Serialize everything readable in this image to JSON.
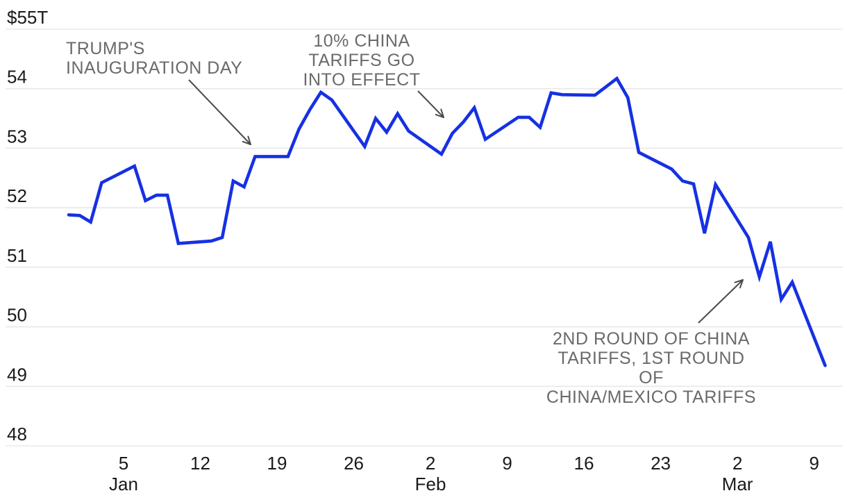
{
  "chart_data": {
    "type": "line",
    "title": "",
    "unit": "trillions of US dollars",
    "ylim": [
      48,
      55
    ],
    "grid": true,
    "y_ticks": [
      {
        "value": 55,
        "label": "$55T"
      },
      {
        "value": 54,
        "label": "54"
      },
      {
        "value": 53,
        "label": "53"
      },
      {
        "value": 52,
        "label": "52"
      },
      {
        "value": 51,
        "label": "51"
      },
      {
        "value": 50,
        "label": "50"
      },
      {
        "value": 49,
        "label": "49"
      },
      {
        "value": 48,
        "label": "48"
      }
    ],
    "x_ticks": [
      {
        "date": "2025-01-05",
        "label": "5",
        "month": "Jan"
      },
      {
        "date": "2025-01-12",
        "label": "12"
      },
      {
        "date": "2025-01-19",
        "label": "19"
      },
      {
        "date": "2025-01-26",
        "label": "26"
      },
      {
        "date": "2025-02-02",
        "label": "2",
        "month": "Feb"
      },
      {
        "date": "2025-02-09",
        "label": "9"
      },
      {
        "date": "2025-02-16",
        "label": "16"
      },
      {
        "date": "2025-02-23",
        "label": "23"
      },
      {
        "date": "2025-03-02",
        "label": "2",
        "month": "Mar"
      },
      {
        "date": "2025-03-09",
        "label": "9"
      }
    ],
    "series": [
      {
        "name": "total-us-stock-market-value",
        "color": "#1631e2",
        "points": [
          [
            "2024-12-31",
            51.88
          ],
          [
            "2025-01-01",
            51.87
          ],
          [
            "2025-01-02",
            51.76
          ],
          [
            "2025-01-03",
            52.42
          ],
          [
            "2025-01-06",
            52.7
          ],
          [
            "2025-01-07",
            52.12
          ],
          [
            "2025-01-08",
            52.21
          ],
          [
            "2025-01-09",
            52.21
          ],
          [
            "2025-01-10",
            51.4
          ],
          [
            "2025-01-13",
            51.44
          ],
          [
            "2025-01-14",
            51.5
          ],
          [
            "2025-01-15",
            52.45
          ],
          [
            "2025-01-16",
            52.35
          ],
          [
            "2025-01-17",
            52.86
          ],
          [
            "2025-01-20",
            52.86
          ],
          [
            "2025-01-21",
            53.32
          ],
          [
            "2025-01-22",
            53.65
          ],
          [
            "2025-01-23",
            53.94
          ],
          [
            "2025-01-24",
            53.81
          ],
          [
            "2025-01-27",
            53.03
          ],
          [
            "2025-01-28",
            53.5
          ],
          [
            "2025-01-29",
            53.27
          ],
          [
            "2025-01-30",
            53.58
          ],
          [
            "2025-01-31",
            53.29
          ],
          [
            "2025-02-03",
            52.9
          ],
          [
            "2025-02-04",
            53.25
          ],
          [
            "2025-02-05",
            53.44
          ],
          [
            "2025-02-06",
            53.68
          ],
          [
            "2025-02-07",
            53.15
          ],
          [
            "2025-02-10",
            53.52
          ],
          [
            "2025-02-11",
            53.52
          ],
          [
            "2025-02-12",
            53.35
          ],
          [
            "2025-02-13",
            53.93
          ],
          [
            "2025-02-14",
            53.9
          ],
          [
            "2025-02-17",
            53.89
          ],
          [
            "2025-02-18",
            54.03
          ],
          [
            "2025-02-19",
            54.17
          ],
          [
            "2025-02-20",
            53.85
          ],
          [
            "2025-02-21",
            52.93
          ],
          [
            "2025-02-24",
            52.65
          ],
          [
            "2025-02-25",
            52.45
          ],
          [
            "2025-02-26",
            52.4
          ],
          [
            "2025-02-27",
            51.57
          ],
          [
            "2025-02-28",
            52.39
          ],
          [
            "2025-03-03",
            51.5
          ],
          [
            "2025-03-04",
            50.84
          ],
          [
            "2025-03-05",
            51.43
          ],
          [
            "2025-03-06",
            50.46
          ],
          [
            "2025-03-07",
            50.75
          ],
          [
            "2025-03-10",
            49.35
          ]
        ]
      }
    ],
    "annotations": [
      {
        "id": "inauguration-day",
        "text": "TRUMP'S\nINAUGURATION DAY",
        "arrow": {
          "from": [
            272,
            115
          ],
          "to": [
            361,
            208
          ]
        }
      },
      {
        "id": "china-tariffs-10pct",
        "text": "10% CHINA\nTARIFFS GO\nINTO EFFECT",
        "arrow": {
          "from": [
            602,
            131
          ],
          "to": [
            639,
            169
          ]
        }
      },
      {
        "id": "second-round-tariffs",
        "text": "2ND ROUND OF CHINA\nTARIFFS, 1ST ROUND OF\nCHINA/MEXICO TARIFFS",
        "arrow": {
          "from": [
            1006,
            465
          ],
          "to": [
            1070,
            403
          ]
        }
      }
    ],
    "colors": {
      "line": "#1631e2",
      "gridline": "#e8e8e8",
      "axis_text": "#1a1a1a",
      "annotation_text": "#6a6a6a",
      "arrow": "#4a4a4a"
    },
    "legend": null
  }
}
